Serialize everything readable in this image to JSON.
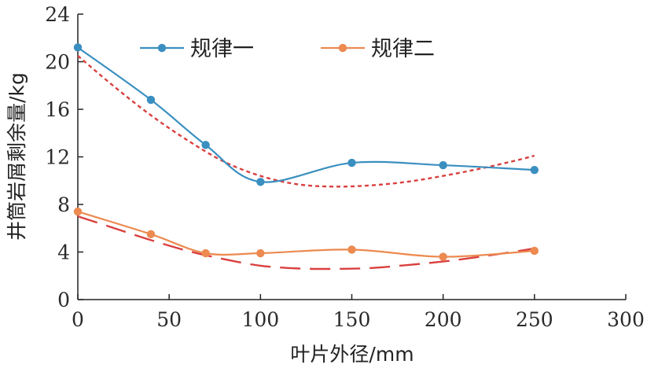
{
  "chart_data": {
    "type": "line",
    "xlabel": "叶片外径/mm",
    "ylabel": "井筒岩屑剩余量/kg",
    "xlim": [
      0,
      300
    ],
    "ylim": [
      0,
      24
    ],
    "x_ticks": [
      0,
      50,
      100,
      150,
      200,
      250,
      300
    ],
    "y_ticks": [
      0,
      4,
      8,
      12,
      16,
      20,
      24
    ],
    "grid": false,
    "legend_position": "top",
    "series": [
      {
        "name": "规律一",
        "color": "#3a8fc0",
        "x": [
          0,
          40,
          70,
          100,
          150,
          200,
          250
        ],
        "y": [
          21.2,
          16.8,
          13.0,
          9.9,
          11.5,
          11.3,
          10.9
        ]
      },
      {
        "name": "规律二",
        "color": "#ec8a50",
        "x": [
          0,
          40,
          70,
          100,
          150,
          200,
          250
        ],
        "y": [
          7.4,
          5.5,
          3.9,
          3.9,
          4.2,
          3.6,
          4.1
        ]
      }
    ],
    "trendlines": [
      {
        "style": "dotted",
        "color": "#d9403f",
        "x": [
          0,
          20,
          40,
          60,
          80,
          100,
          120,
          140,
          160,
          180,
          200,
          220,
          240,
          250
        ],
        "y": [
          20.5,
          17.9,
          15.5,
          13.4,
          11.6,
          10.4,
          9.7,
          9.5,
          9.6,
          9.9,
          10.4,
          11.0,
          11.7,
          12.1
        ]
      },
      {
        "style": "dashed",
        "color": "#d9403f",
        "x": [
          0,
          20,
          40,
          60,
          80,
          100,
          120,
          140,
          160,
          180,
          200,
          220,
          240,
          250
        ],
        "y": [
          7.0,
          6.0,
          5.0,
          4.1,
          3.4,
          2.85,
          2.62,
          2.58,
          2.65,
          2.9,
          3.2,
          3.6,
          4.05,
          4.3
        ]
      }
    ]
  }
}
